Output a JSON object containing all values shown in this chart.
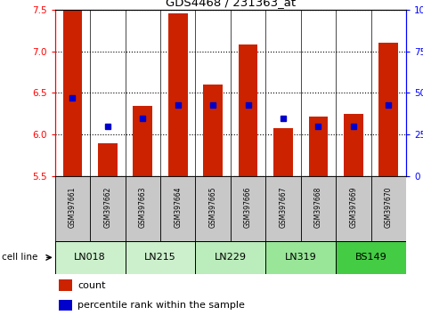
{
  "title": "GDS4468 / 231363_at",
  "samples": [
    "GSM397661",
    "GSM397662",
    "GSM397663",
    "GSM397664",
    "GSM397665",
    "GSM397666",
    "GSM397667",
    "GSM397668",
    "GSM397669",
    "GSM397670"
  ],
  "count_values": [
    7.5,
    5.9,
    6.35,
    7.45,
    6.6,
    7.08,
    6.08,
    6.22,
    6.25,
    7.1
  ],
  "percentile_values": [
    47,
    30,
    35,
    43,
    43,
    43,
    35,
    30,
    30,
    43
  ],
  "ylim_left": [
    5.5,
    7.5
  ],
  "ylim_right": [
    0,
    100
  ],
  "yticks_left": [
    5.5,
    6.0,
    6.5,
    7.0,
    7.5
  ],
  "yticks_right": [
    0,
    25,
    50,
    75,
    100
  ],
  "cell_line_configs": [
    {
      "name": "LN018",
      "start": 0,
      "end": 2,
      "color": "#ccf0cc"
    },
    {
      "name": "LN215",
      "start": 2,
      "end": 4,
      "color": "#ccf0cc"
    },
    {
      "name": "LN229",
      "start": 4,
      "end": 6,
      "color": "#bbecbb"
    },
    {
      "name": "LN319",
      "start": 6,
      "end": 8,
      "color": "#99e699"
    },
    {
      "name": "BS149",
      "start": 8,
      "end": 10,
      "color": "#44cc44"
    }
  ],
  "bar_color": "#cc2200",
  "dot_color": "#0000cc",
  "bar_width": 0.55,
  "baseline": 5.5,
  "sample_box_color": "#c8c8c8",
  "legend_count_color": "#cc2200",
  "legend_pct_color": "#0000cc"
}
